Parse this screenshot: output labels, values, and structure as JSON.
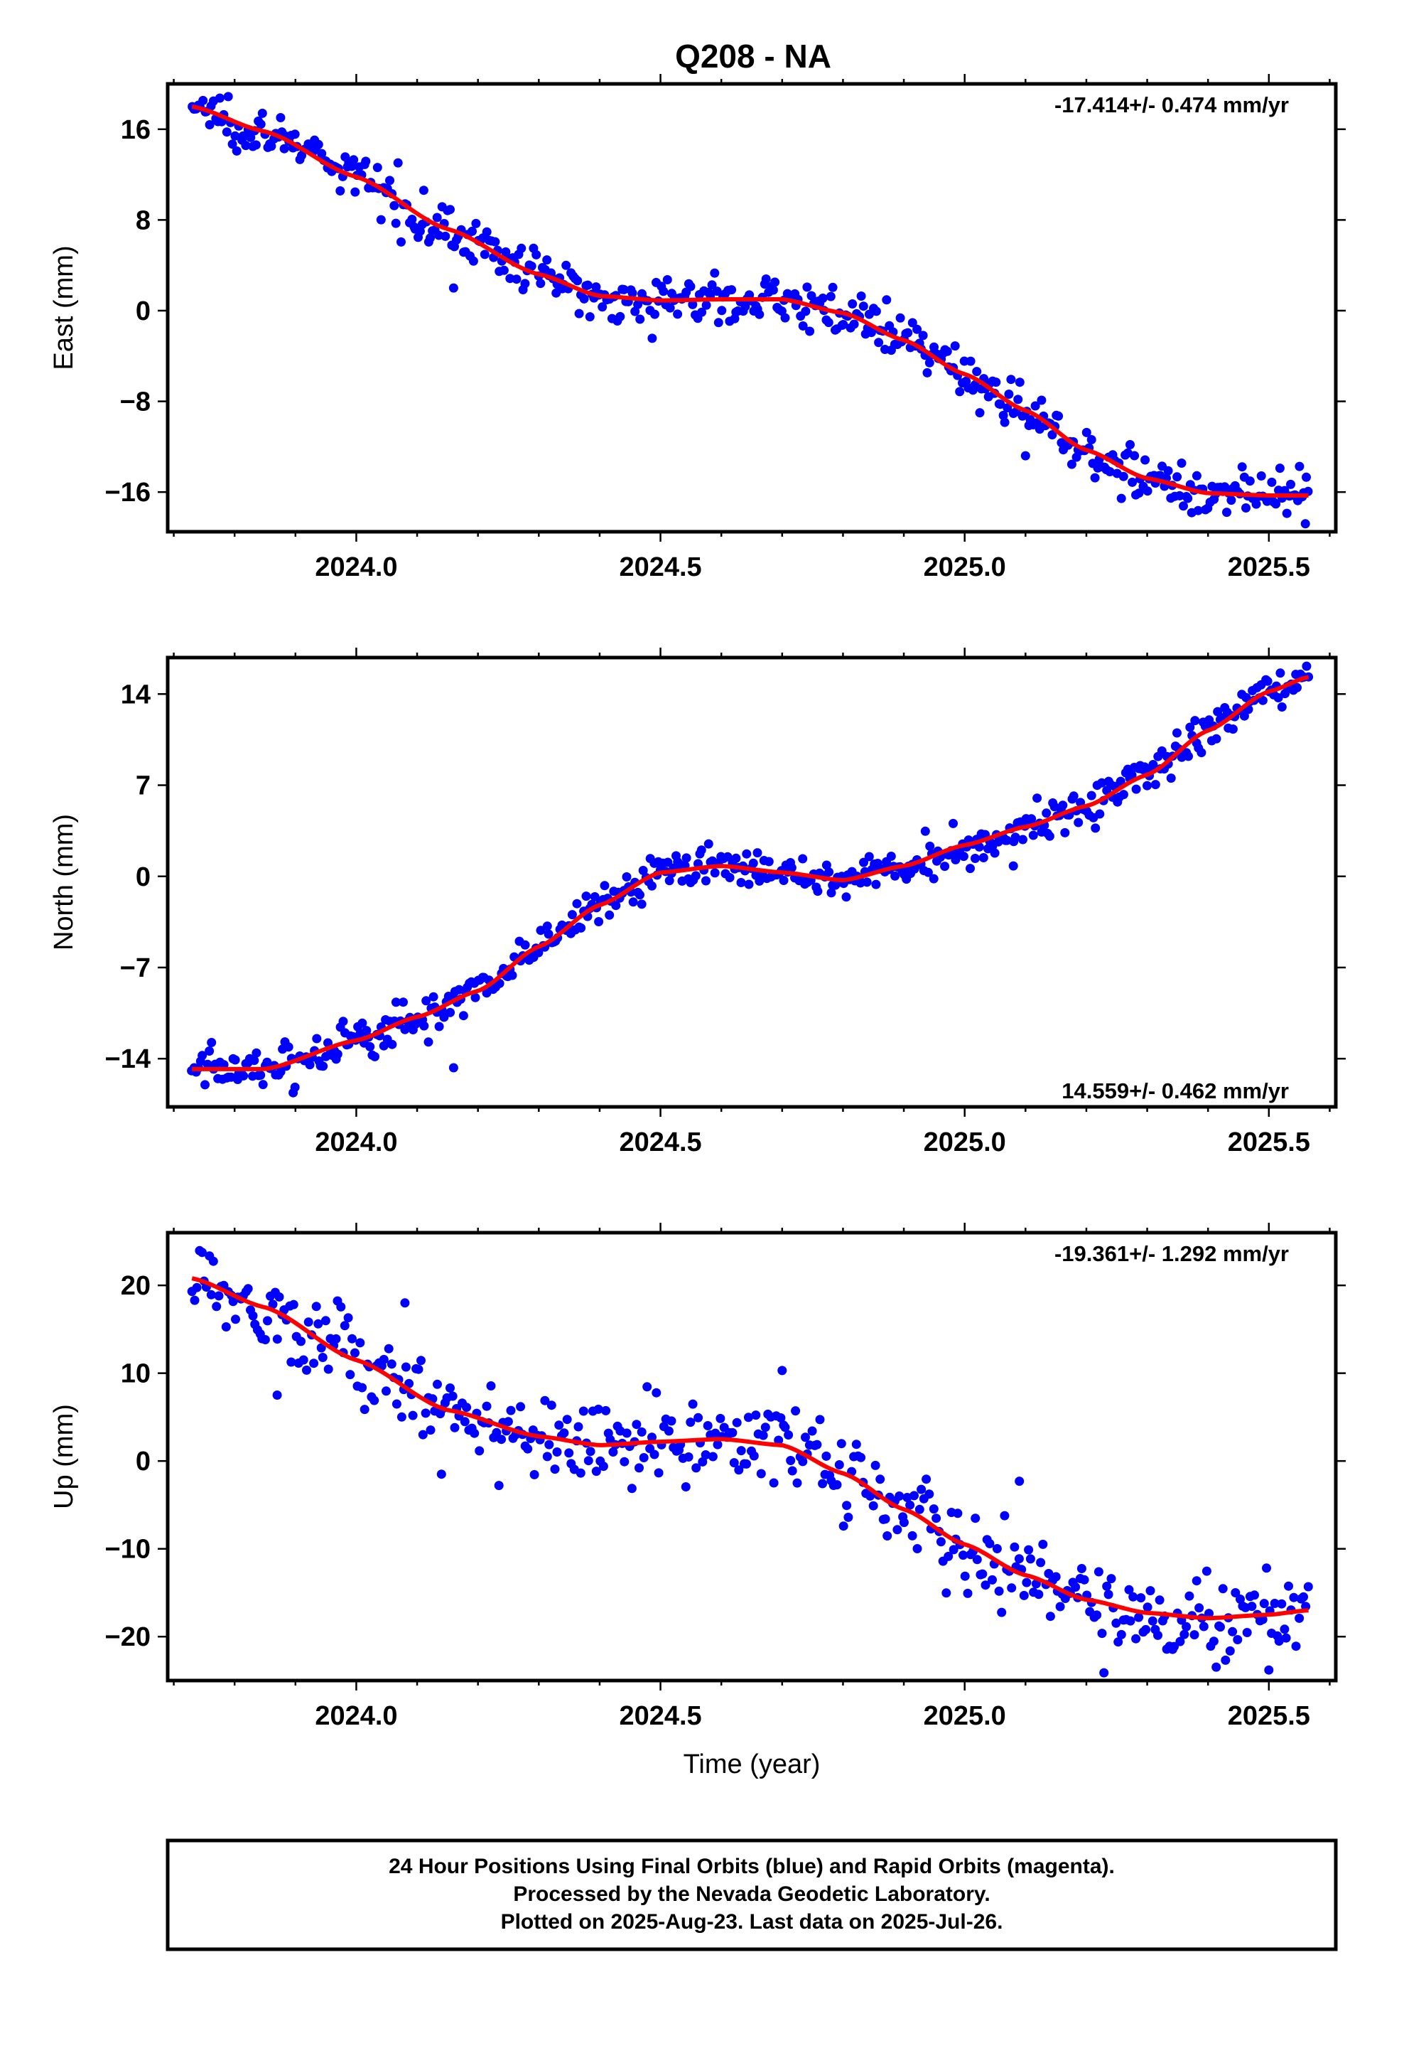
{
  "page": {
    "title": "Q208 - NA"
  },
  "colors": {
    "final_orbits": "#0000ff",
    "fit": "#ff0000",
    "frame": "#000000"
  },
  "footer": {
    "line1": "24 Hour Positions Using Final Orbits (blue) and Rapid Orbits (magenta).",
    "line2": "Processed by the Nevada Geodetic Laboratory.",
    "line3": "Plotted on 2025-Aug-23. Last data on 2025-Jul-26."
  },
  "chart_data": [
    {
      "type": "scatter",
      "ylabel": "East (mm)",
      "xlabel": "",
      "rate_label": "-17.414+/- 0.474 mm/yr",
      "xlim": [
        2023.69,
        2025.61
      ],
      "ylim": [
        -19.5,
        20.0
      ],
      "x_ticks": [
        2024.0,
        2024.5,
        2025.0,
        2025.5
      ],
      "x_tick_labels": [
        "2024.0",
        "2024.5",
        "2025.0",
        "2025.5"
      ],
      "y_ticks": [
        16,
        8,
        0,
        -8,
        -16
      ],
      "y_tick_labels": [
        "16",
        "8",
        "0",
        "−8",
        "−16"
      ],
      "x_start": 2023.73,
      "x_end": 2025.565,
      "n_points": 520,
      "fit": {
        "name": "",
        "x": [
          2023.73,
          2023.85,
          2024.0,
          2024.15,
          2024.3,
          2024.4,
          2024.5,
          2024.6,
          2024.7,
          2024.8,
          2024.9,
          2025.0,
          2025.1,
          2025.2,
          2025.3,
          2025.4,
          2025.5,
          2025.565
        ],
        "y": [
          18.0,
          15.8,
          11.8,
          7.2,
          3.2,
          1.3,
          0.9,
          1.0,
          1.0,
          -0.2,
          -2.6,
          -5.6,
          -8.8,
          -12.3,
          -14.8,
          -16.1,
          -16.3,
          -16.3
        ]
      },
      "noise_sd": 1.0,
      "outliers": [
        {
          "x": 2024.16,
          "y": 2.0
        },
        {
          "x": 2025.1,
          "y": -12.8
        },
        {
          "x": 2025.56,
          "y": -18.8
        }
      ]
    },
    {
      "type": "scatter",
      "ylabel": "North (mm)",
      "xlabel": "",
      "rate_label": "14.559+/- 0.462 mm/yr",
      "xlim": [
        2023.69,
        2025.61
      ],
      "ylim": [
        -17.7,
        16.8
      ],
      "x_ticks": [
        2024.0,
        2024.5,
        2025.0,
        2025.5
      ],
      "x_tick_labels": [
        "2024.0",
        "2024.5",
        "2025.0",
        "2025.5"
      ],
      "y_ticks": [
        14,
        7,
        0,
        -7,
        -14
      ],
      "y_tick_labels": [
        "14",
        "7",
        "0",
        "−7",
        "−14"
      ],
      "x_start": 2023.73,
      "x_end": 2025.565,
      "n_points": 520,
      "fit": {
        "name": "",
        "x": [
          2023.73,
          2023.85,
          2024.0,
          2024.1,
          2024.2,
          2024.3,
          2024.4,
          2024.5,
          2024.6,
          2024.7,
          2024.8,
          2024.9,
          2025.0,
          2025.1,
          2025.2,
          2025.3,
          2025.4,
          2025.5,
          2025.565
        ],
        "y": [
          -14.8,
          -14.8,
          -12.6,
          -10.8,
          -8.8,
          -5.4,
          -2.2,
          0.3,
          0.8,
          0.3,
          -0.3,
          0.8,
          2.4,
          3.8,
          5.4,
          7.8,
          11.2,
          14.2,
          15.3
        ]
      },
      "noise_sd": 0.8,
      "outliers": [
        {
          "x": 2024.16,
          "y": -14.7
        },
        {
          "x": 2025.08,
          "y": 0.8
        }
      ]
    },
    {
      "type": "scatter",
      "ylabel": "Up (mm)",
      "xlabel": "Time (year)",
      "rate_label": "-19.361+/- 1.292 mm/yr",
      "xlim": [
        2023.69,
        2025.61
      ],
      "ylim": [
        -25.0,
        26.0
      ],
      "x_ticks": [
        2024.0,
        2024.5,
        2025.0,
        2025.5
      ],
      "x_tick_labels": [
        "2024.0",
        "2024.5",
        "2025.0",
        "2025.5"
      ],
      "y_ticks": [
        20,
        10,
        0,
        -10,
        -20
      ],
      "y_tick_labels": [
        "20",
        "10",
        "0",
        "−10",
        "−20"
      ],
      "x_start": 2023.73,
      "x_end": 2025.565,
      "n_points": 460,
      "fit": {
        "name": "",
        "x": [
          2023.73,
          2023.85,
          2024.0,
          2024.15,
          2024.3,
          2024.4,
          2024.5,
          2024.6,
          2024.7,
          2024.8,
          2024.9,
          2025.0,
          2025.1,
          2025.2,
          2025.3,
          2025.4,
          2025.5,
          2025.565
        ],
        "y": [
          20.8,
          17.5,
          11.5,
          5.8,
          2.8,
          1.8,
          2.2,
          2.5,
          1.8,
          -1.4,
          -5.5,
          -9.5,
          -13.0,
          -15.8,
          -17.3,
          -17.9,
          -17.5,
          -17.0
        ]
      },
      "noise_sd": 2.4,
      "outliers": [
        {
          "x": 2023.87,
          "y": 7.5
        },
        {
          "x": 2024.08,
          "y": 18.0
        },
        {
          "x": 2024.14,
          "y": -1.5
        },
        {
          "x": 2024.7,
          "y": 10.3
        },
        {
          "x": 2025.09,
          "y": -2.3
        },
        {
          "x": 2025.5,
          "y": -23.8
        }
      ]
    }
  ]
}
